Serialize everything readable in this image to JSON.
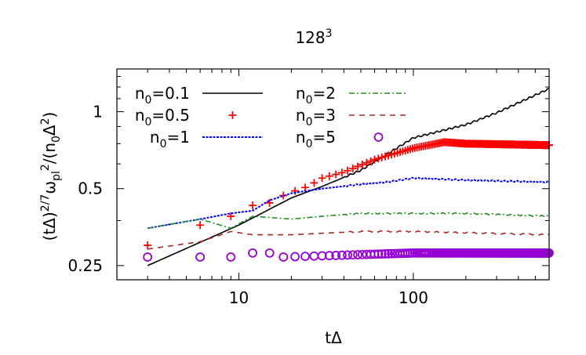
{
  "chart_data": {
    "type": "line",
    "title": "128",
    "title_superscript": "3",
    "xlabel": "tΔ",
    "ylabel": {
      "base": "(tΔ)",
      "sup1": "2/7",
      "mid": "ω",
      "sub1": "pl",
      "sup2": "2",
      "tail": "/(n",
      "sub2": "0",
      "tail2": "Δ",
      "sup3": "2",
      "end": ")"
    },
    "x_scale": "log",
    "y_scale": "log",
    "xlim": [
      2,
      600
    ],
    "ylim": [
      0.22,
      1.47
    ],
    "x_ticks": [
      {
        "value": 10,
        "label": "10"
      },
      {
        "value": 100,
        "label": "100"
      }
    ],
    "y_ticks": [
      {
        "value": 0.25,
        "label": "0.25"
      },
      {
        "value": 0.5,
        "label": "0.5"
      },
      {
        "value": 1,
        "label": "1"
      }
    ],
    "grid": false,
    "legend_position": "top-left",
    "series": [
      {
        "name": "n0=0.1",
        "label_main": "n",
        "label_sub": "0",
        "label_val": "=0.1",
        "style": "solid",
        "color": "#000000",
        "x": [
          3,
          10,
          20,
          30,
          50,
          100,
          200,
          300,
          600
        ],
        "y": [
          0.25,
          0.36,
          0.46,
          0.51,
          0.59,
          0.79,
          0.89,
          0.99,
          1.23
        ]
      },
      {
        "name": "n0=0.5",
        "label_main": "n",
        "label_sub": "0",
        "label_val": "=0.5",
        "style": "plus",
        "color": "#ff0000",
        "x": [
          3,
          6,
          9,
          12,
          15,
          18,
          21,
          25,
          30,
          40,
          60,
          100,
          150,
          200,
          600
        ],
        "y": [
          0.3,
          0.36,
          0.39,
          0.43,
          0.44,
          0.47,
          0.49,
          0.51,
          0.55,
          0.58,
          0.65,
          0.72,
          0.76,
          0.75,
          0.74
        ]
      },
      {
        "name": "n0=1",
        "label_main": "n",
        "label_sub": "0",
        "label_val": "=1",
        "style": "dotted",
        "color": "#0000ff",
        "x": [
          3,
          6,
          9,
          12,
          15,
          20,
          30,
          50,
          70,
          100,
          200,
          600
        ],
        "y": [
          0.35,
          0.38,
          0.4,
          0.41,
          0.45,
          0.48,
          0.5,
          0.52,
          0.53,
          0.55,
          0.54,
          0.53
        ]
      },
      {
        "name": "n0=2",
        "label_main": "n",
        "label_sub": "0",
        "label_val": "=2",
        "style": "dashdot",
        "color": "#228b22",
        "x": [
          3,
          6,
          9,
          12,
          20,
          30,
          50,
          100,
          200,
          600
        ],
        "y": [
          0.35,
          0.38,
          0.35,
          0.39,
          0.38,
          0.39,
          0.4,
          0.4,
          0.4,
          0.39
        ]
      },
      {
        "name": "n0=3",
        "label_main": "n",
        "label_sub": "0",
        "label_val": "=3",
        "style": "dashed",
        "color": "#a52a2a",
        "x": [
          3,
          6,
          9,
          12,
          20,
          50,
          100,
          600
        ],
        "y": [
          0.29,
          0.31,
          0.34,
          0.33,
          0.33,
          0.34,
          0.34,
          0.33
        ]
      },
      {
        "name": "n0=5",
        "label_main": "n",
        "label_sub": "0",
        "label_val": "=5",
        "style": "circle",
        "color": "#9400d3",
        "x": [
          3,
          6,
          9,
          12,
          15,
          18,
          100,
          600
        ],
        "y": [
          0.27,
          0.27,
          0.27,
          0.28,
          0.28,
          0.27,
          0.28,
          0.28
        ]
      }
    ]
  }
}
